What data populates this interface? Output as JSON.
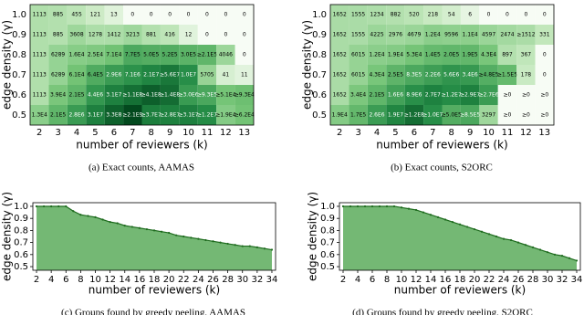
{
  "chart_data": [
    {
      "type": "heatmap",
      "caption": "(a) Exact counts, AAMAS",
      "x_label": "number of reviewers (k)",
      "y_label": "edge density (γ)",
      "categories": [
        2,
        3,
        4,
        5,
        6,
        7,
        8,
        9,
        10,
        11,
        12,
        13
      ],
      "rows": [
        "1.0",
        "0.9",
        "0.8",
        "0.7",
        "0.6",
        "0.5"
      ],
      "cells": [
        [
          "1113",
          "885",
          "455",
          "121",
          "13",
          "0",
          "0",
          "0",
          "0",
          "0",
          "0",
          "0"
        ],
        [
          "1113",
          "885",
          "3608",
          "1278",
          "1412",
          "3213",
          "881",
          "416",
          "12",
          "0",
          "0",
          "0"
        ],
        [
          "1113",
          "6289",
          "1.6E4",
          "2.5E4",
          "7.1E4",
          "7.7E5",
          "5.0E5",
          "5.2E5",
          "3.0E5",
          "≥2.1E5",
          "4046",
          "0"
        ],
        [
          "1113",
          "6289",
          "6.1E4",
          "6.4E5",
          "2.9E6",
          "7.1E6",
          "2.1E7",
          "≥5.6E7",
          "1.0E7",
          "5705",
          "41",
          "11"
        ],
        [
          "1113",
          "3.9E4",
          "2.1E5",
          "4.4E6",
          "3.1E7",
          "≥1.1E8",
          "≥4.1E8",
          "≥1.4E8",
          "≥3.0E6",
          "≥9.3E5",
          "≥5.1E4",
          "≥9.3E4"
        ],
        [
          "1.3E4",
          "2.1E5",
          "2.8E6",
          "3.1E7",
          "3.3E8",
          "≥2.1E9",
          "≥3.7E7",
          "≥2.8E7",
          "≥3.1E7",
          "≥1.2E7",
          "≥1.9E4",
          "≥6.2E4"
        ]
      ]
    },
    {
      "type": "heatmap",
      "caption": "(b) Exact counts, S2ORC",
      "x_label": "number of reviewers (k)",
      "y_label": "edge density (γ)",
      "categories": [
        2,
        3,
        4,
        5,
        6,
        7,
        8,
        9,
        10,
        11,
        12,
        13
      ],
      "rows": [
        "1.0",
        "0.9",
        "0.8",
        "0.7",
        "0.6",
        "0.5"
      ],
      "cells": [
        [
          "1652",
          "1555",
          "1234",
          "882",
          "520",
          "218",
          "54",
          "6",
          "0",
          "0",
          "0",
          "0"
        ],
        [
          "1652",
          "1555",
          "4225",
          "2976",
          "4679",
          "1.2E4",
          "9596",
          "1.1E4",
          "4597",
          "2474",
          "≥1512",
          "331"
        ],
        [
          "1652",
          "6015",
          "1.2E4",
          "1.9E4",
          "5.3E4",
          "1.4E5",
          "2.0E5",
          "1.9E5",
          "4.3E4",
          "897",
          "367",
          "0"
        ],
        [
          "1652",
          "6015",
          "4.3E4",
          "2.5E5",
          "8.3E5",
          "2.2E6",
          "5.6E6",
          "3.4E6",
          "≥4.8E5",
          "≥1.5E5",
          "178",
          "0"
        ],
        [
          "1652",
          "3.4E4",
          "2.1E5",
          "1.6E6",
          "8.9E6",
          "2.7E7",
          "≥1.2E7",
          "≥2.9E7",
          "≥2.7E6",
          "≥0",
          "≥0",
          "≥0"
        ],
        [
          "1.9E4",
          "1.7E5",
          "2.6E6",
          "1.9E7",
          "≥1.2E8",
          "≥1.0E7",
          "≥5.0E5",
          "≥8.5E5",
          "3297",
          "≥0",
          "≥0",
          "≥0"
        ]
      ]
    },
    {
      "type": "area",
      "caption": "(c) Groups found by greedy peeling, AAMAS",
      "x_label": "number of reviewers (k)",
      "y_label": "edge density (γ)",
      "color": "#74b874",
      "line_color": "#1e6b1e",
      "x": [
        2,
        3,
        4,
        5,
        6,
        7,
        8,
        9,
        10,
        11,
        12,
        13,
        14,
        15,
        16,
        17,
        18,
        19,
        20,
        21,
        22,
        23,
        24,
        25,
        26,
        27,
        28,
        29,
        30,
        31,
        32,
        33,
        34
      ],
      "values": [
        1.0,
        1.0,
        1.0,
        1.0,
        1.0,
        0.96,
        0.93,
        0.92,
        0.91,
        0.89,
        0.87,
        0.86,
        0.84,
        0.83,
        0.82,
        0.81,
        0.8,
        0.79,
        0.78,
        0.76,
        0.75,
        0.74,
        0.73,
        0.72,
        0.71,
        0.7,
        0.69,
        0.68,
        0.67,
        0.67,
        0.66,
        0.65,
        0.64
      ],
      "xlim": [
        1.5,
        34.5
      ],
      "ylim": [
        0.47,
        1.03
      ],
      "xticks": [
        2,
        4,
        6,
        8,
        10,
        12,
        14,
        16,
        18,
        20,
        22,
        24,
        26,
        28,
        30,
        32,
        34
      ],
      "yticks": [
        0.5,
        0.6,
        0.7,
        0.8,
        0.9,
        {
          "value": 1.0,
          "label": "1.0"
        }
      ]
    },
    {
      "type": "area",
      "caption": "(d) Groups found by greedy peeling, S2ORC",
      "x_label": "number of reviewers (k)",
      "y_label": "edge density (γ)",
      "color": "#74b874",
      "line_color": "#1e6b1e",
      "x": [
        2,
        3,
        4,
        5,
        6,
        7,
        8,
        9,
        10,
        11,
        12,
        13,
        14,
        15,
        16,
        17,
        18,
        19,
        20,
        21,
        22,
        23,
        24,
        25,
        26,
        27,
        28,
        29,
        30,
        31,
        32,
        33,
        34
      ],
      "values": [
        1.0,
        1.0,
        1.0,
        1.0,
        1.0,
        1.0,
        1.0,
        1.0,
        0.99,
        0.98,
        0.97,
        0.95,
        0.93,
        0.91,
        0.89,
        0.87,
        0.85,
        0.83,
        0.81,
        0.79,
        0.77,
        0.75,
        0.73,
        0.72,
        0.7,
        0.68,
        0.66,
        0.64,
        0.62,
        0.6,
        0.59,
        0.57,
        0.55
      ],
      "xlim": [
        1.5,
        34.5
      ],
      "ylim": [
        0.47,
        1.03
      ],
      "xticks": [
        2,
        4,
        6,
        8,
        10,
        12,
        14,
        16,
        18,
        20,
        22,
        24,
        26,
        28,
        30,
        32,
        34
      ],
      "yticks": [
        0.5,
        0.6,
        0.7,
        0.8,
        0.9,
        {
          "value": 1.0,
          "label": "1.0"
        }
      ]
    }
  ]
}
